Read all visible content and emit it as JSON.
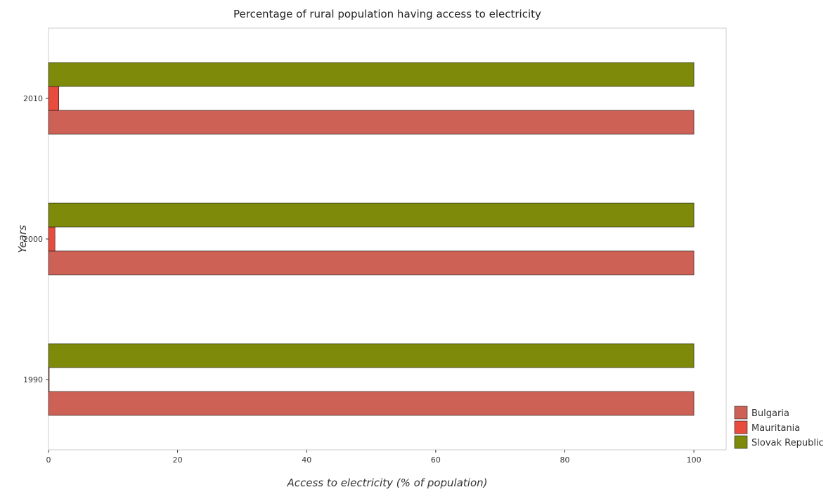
{
  "chart_data": {
    "type": "bar",
    "orientation": "horizontal",
    "title": "Percentage of rural population having access to electricity",
    "xlabel": "Access to electricity (% of population)",
    "ylabel": "Years",
    "xlim": [
      0,
      105
    ],
    "xticks": [
      0,
      20,
      40,
      60,
      80,
      100
    ],
    "categories": [
      "1990",
      "2000",
      "2010"
    ],
    "series": [
      {
        "name": "Bulgaria",
        "color": "#cd6155",
        "values": [
          100,
          100,
          100
        ]
      },
      {
        "name": "Mauritania",
        "color": "#e74c3c",
        "values": [
          0.1,
          1.0,
          1.6
        ]
      },
      {
        "name": "Slovak Republic",
        "color": "#7d8a0a",
        "values": [
          100,
          100,
          100
        ]
      }
    ],
    "legend_position": "bottom-right",
    "grid": false
  }
}
